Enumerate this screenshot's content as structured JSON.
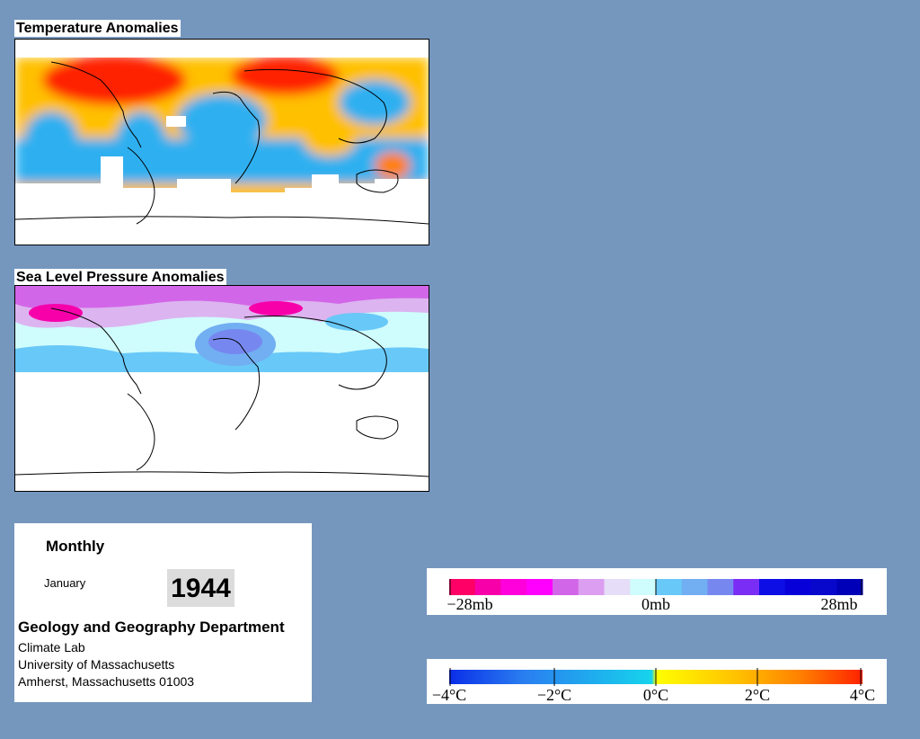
{
  "panels": {
    "temperature": {
      "title": "Temperature Anomalies"
    },
    "pressure": {
      "title": "Sea Level Pressure Anomalies"
    }
  },
  "info": {
    "period": "Monthly",
    "month": "January",
    "year": "1944",
    "department": "Geology and Geography Department",
    "lab": "Climate Lab",
    "university": "University of Massachusetts",
    "address": "Amherst, Massachusetts 01003"
  },
  "legends": {
    "pressure": {
      "labels": [
        "−28mb",
        "0mb",
        "28mb"
      ],
      "colors": [
        "#ff0066",
        "#f700aa",
        "#ff00dd",
        "#ff00ff",
        "#d266e8",
        "#dc9ef0",
        "#e6ddf8",
        "#cffcfc",
        "#68c8f8",
        "#72aef2",
        "#7688f0",
        "#7a2ef5",
        "#0d0de6",
        "#0800d8",
        "#0808cc",
        "#0000b8"
      ]
    },
    "temperature": {
      "labels": [
        "−4°C",
        "−2°C",
        "0°C",
        "2°C",
        "4°C"
      ],
      "gradient_stops": [
        "#0a2ee8",
        "#2a7ef0",
        "#16d4ec",
        "#ffff00",
        "#ffc000",
        "#ff8000",
        "#ff2200"
      ]
    }
  },
  "colors": {
    "background": "#7597be",
    "warm": "#ff2a00",
    "cold": "#2fb0f0"
  }
}
